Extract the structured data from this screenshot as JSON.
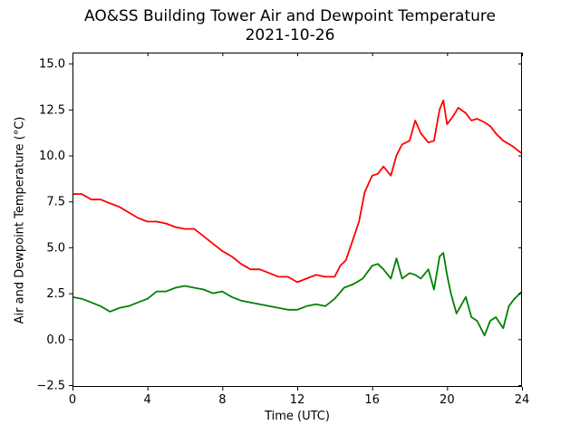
{
  "chart_data": {
    "type": "line",
    "title": "AO&SS Building Tower Air and Dewpoint Temperature",
    "subtitle": "2021-10-26",
    "xlabel": "Time (UTC)",
    "ylabel": "Air and Dewpoint Temperature (°C)",
    "xlim": [
      0,
      24
    ],
    "ylim": [
      -2.6,
      15.6
    ],
    "xticks": [
      0,
      4,
      8,
      12,
      16,
      20,
      24
    ],
    "yticks": [
      -2.5,
      0.0,
      2.5,
      5.0,
      7.5,
      10.0,
      12.5,
      15.0
    ],
    "ytick_labels": [
      "−2.5",
      "0.0",
      "2.5",
      "5.0",
      "7.5",
      "10.0",
      "12.5",
      "15.0"
    ],
    "grid": false,
    "legend": "none",
    "series": [
      {
        "color": "#ff0000",
        "x": [
          0,
          0.5,
          1,
          1.5,
          2,
          2.5,
          3,
          3.5,
          4,
          4.5,
          5,
          5.5,
          6,
          6.5,
          7,
          7.5,
          8,
          8.5,
          9,
          9.5,
          10,
          10.5,
          11,
          11.5,
          12,
          12.5,
          13,
          13.5,
          14,
          14.3,
          14.6,
          15,
          15.3,
          15.6,
          16,
          16.3,
          16.6,
          17,
          17.3,
          17.6,
          18,
          18.3,
          18.6,
          19,
          19.3,
          19.6,
          19.8,
          20,
          20.3,
          20.6,
          21,
          21.3,
          21.6,
          22,
          22.3,
          22.6,
          23,
          23.5,
          24
        ],
        "values": [
          7.9,
          7.9,
          7.6,
          7.6,
          7.4,
          7.2,
          6.9,
          6.6,
          6.4,
          6.4,
          6.3,
          6.1,
          6.0,
          6.0,
          5.6,
          5.2,
          4.8,
          4.5,
          4.1,
          3.8,
          3.8,
          3.6,
          3.4,
          3.4,
          3.1,
          3.3,
          3.5,
          3.4,
          3.4,
          4.0,
          4.3,
          5.5,
          6.4,
          8.0,
          8.9,
          9.0,
          9.4,
          8.9,
          10.0,
          10.6,
          10.8,
          11.9,
          11.2,
          10.7,
          10.8,
          12.5,
          13.0,
          11.7,
          12.1,
          12.6,
          12.3,
          11.9,
          12.0,
          11.8,
          11.6,
          11.2,
          10.8,
          10.5,
          10.1
        ]
      },
      {
        "color": "#008000",
        "x": [
          0,
          0.5,
          1,
          1.5,
          2,
          2.5,
          3,
          3.5,
          4,
          4.5,
          5,
          5.5,
          6,
          6.5,
          7,
          7.5,
          8,
          8.5,
          9,
          9.5,
          10,
          10.5,
          11,
          11.5,
          12,
          12.5,
          13,
          13.5,
          14,
          14.5,
          15,
          15.5,
          16,
          16.3,
          16.6,
          17,
          17.3,
          17.6,
          18,
          18.3,
          18.6,
          19,
          19.3,
          19.6,
          19.8,
          20,
          20.2,
          20.5,
          21,
          21.3,
          21.6,
          22,
          22.3,
          22.6,
          23,
          23.3,
          23.6,
          24
        ],
        "values": [
          2.3,
          2.2,
          2.0,
          1.8,
          1.5,
          1.7,
          1.8,
          2.0,
          2.2,
          2.6,
          2.6,
          2.8,
          2.9,
          2.8,
          2.7,
          2.5,
          2.6,
          2.3,
          2.1,
          2.0,
          1.9,
          1.8,
          1.7,
          1.6,
          1.6,
          1.8,
          1.9,
          1.8,
          2.2,
          2.8,
          3.0,
          3.3,
          4.0,
          4.1,
          3.8,
          3.3,
          4.4,
          3.3,
          3.6,
          3.5,
          3.3,
          3.8,
          2.7,
          4.5,
          4.7,
          3.5,
          2.5,
          1.4,
          2.3,
          1.2,
          1.0,
          0.2,
          1.0,
          1.2,
          0.6,
          1.8,
          2.2,
          2.6
        ]
      }
    ]
  }
}
